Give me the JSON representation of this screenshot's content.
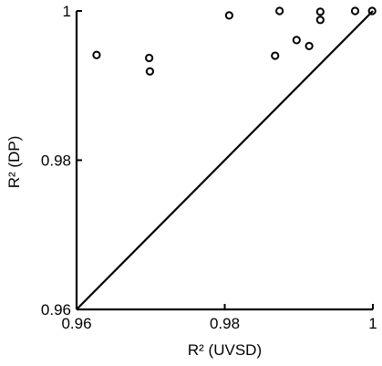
{
  "chart_data": {
    "type": "scatter",
    "title": "",
    "xlabel": "R² (UVSD)",
    "ylabel": "R² (DP)",
    "xlim": [
      0.96,
      1.0
    ],
    "ylim": [
      0.96,
      1.0
    ],
    "xticks": [
      0.96,
      0.98,
      1.0
    ],
    "yticks": [
      0.96,
      0.98,
      1.0
    ],
    "xtick_labels": [
      "0.96",
      "0.98",
      "1"
    ],
    "ytick_labels": [
      "0.96",
      "0.98",
      "1"
    ],
    "grid": false,
    "reference_line": {
      "x": [
        0.96,
        1.0
      ],
      "y": [
        0.96,
        1.0
      ]
    },
    "series": [
      {
        "marker": "open-circle",
        "color": "#000000",
        "x": [
          0.9627,
          0.9698,
          0.9699,
          0.9806,
          0.9874,
          0.9868,
          0.9897,
          0.9914,
          0.9929,
          0.9929,
          0.9976,
          0.9999
        ],
        "y": [
          0.9941,
          0.9937,
          0.9919,
          0.9994,
          1.0,
          0.994,
          0.9961,
          0.9953,
          0.9999,
          0.9988,
          1.0,
          1.0
        ]
      }
    ]
  }
}
